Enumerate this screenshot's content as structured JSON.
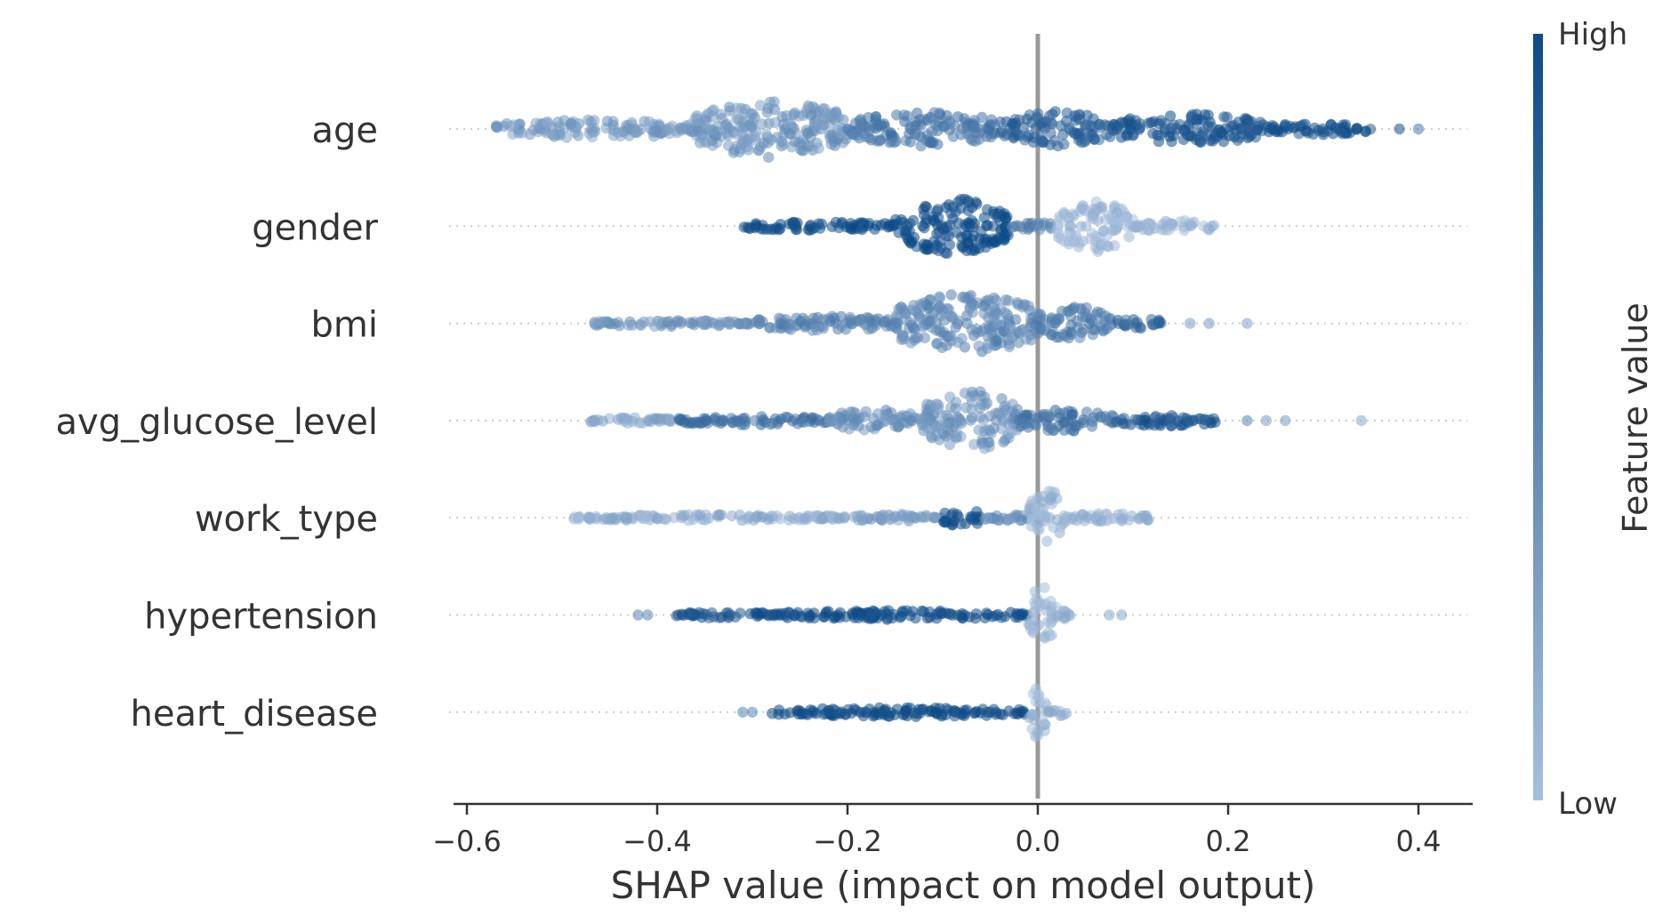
{
  "chart_data": {
    "type": "scatter",
    "subtype": "shap-beeswarm",
    "title": "",
    "xlabel": "SHAP value (impact on model output)",
    "ylabel": "",
    "xlim": [
      -0.62,
      0.45
    ],
    "xticks": [
      -0.6,
      -0.4,
      -0.2,
      0.0,
      0.2,
      0.4
    ],
    "xtick_labels": [
      "−0.6",
      "−0.4",
      "−0.2",
      "0.0",
      "0.2",
      "0.4"
    ],
    "zero_line": 0.0,
    "grid": false,
    "features": [
      {
        "name": "age",
        "segments": [
          {
            "from": -0.57,
            "to": -0.36,
            "spread": 0.25,
            "value": 0.3
          },
          {
            "from": -0.36,
            "to": -0.2,
            "spread": 0.75,
            "value": 0.35
          },
          {
            "from": -0.2,
            "to": -0.04,
            "spread": 0.45,
            "value": 0.6
          },
          {
            "from": -0.04,
            "to": 0.08,
            "spread": 0.45,
            "value": 0.8
          },
          {
            "from": 0.08,
            "to": 0.24,
            "spread": 0.4,
            "value": 0.9
          },
          {
            "from": 0.24,
            "to": 0.35,
            "spread": 0.15,
            "value": 0.95
          }
        ],
        "outliers": [
          {
            "x": 0.38,
            "value": 0.95
          },
          {
            "x": 0.4,
            "value": 0.6
          }
        ]
      },
      {
        "name": "gender",
        "segments": [
          {
            "from": -0.31,
            "to": -0.15,
            "spread": 0.12,
            "value": 1.0
          },
          {
            "from": -0.15,
            "to": -0.03,
            "spread": 0.75,
            "value": 1.0
          },
          {
            "from": -0.03,
            "to": 0.02,
            "spread": 0.1,
            "value": 0.5
          },
          {
            "from": 0.02,
            "to": 0.1,
            "spread": 0.7,
            "value": 0.05
          },
          {
            "from": 0.1,
            "to": 0.19,
            "spread": 0.15,
            "value": 0.05
          }
        ],
        "outliers": []
      },
      {
        "name": "bmi",
        "segments": [
          {
            "from": -0.48,
            "to": -0.3,
            "spread": 0.08,
            "value": 0.35
          },
          {
            "from": -0.3,
            "to": -0.15,
            "spread": 0.2,
            "value": 0.5
          },
          {
            "from": -0.15,
            "to": 0.0,
            "spread": 0.8,
            "value": 0.45
          },
          {
            "from": 0.0,
            "to": 0.08,
            "spread": 0.45,
            "value": 0.55
          },
          {
            "from": 0.08,
            "to": 0.13,
            "spread": 0.15,
            "value": 0.75
          }
        ],
        "outliers": [
          {
            "x": 0.16,
            "value": 0.3
          },
          {
            "x": 0.18,
            "value": 0.3
          },
          {
            "x": 0.22,
            "value": 0.25
          }
        ]
      },
      {
        "name": "avg_glucose_level",
        "segments": [
          {
            "from": -0.47,
            "to": -0.38,
            "spread": 0.08,
            "value": 0.2
          },
          {
            "from": -0.38,
            "to": -0.22,
            "spread": 0.12,
            "value": 0.65
          },
          {
            "from": -0.22,
            "to": -0.12,
            "spread": 0.3,
            "value": 0.4
          },
          {
            "from": -0.12,
            "to": -0.02,
            "spread": 0.8,
            "value": 0.35
          },
          {
            "from": -0.02,
            "to": 0.08,
            "spread": 0.3,
            "value": 0.65
          },
          {
            "from": 0.08,
            "to": 0.19,
            "spread": 0.15,
            "value": 0.85
          }
        ],
        "outliers": [
          {
            "x": 0.22,
            "value": 0.5
          },
          {
            "x": 0.24,
            "value": 0.3
          },
          {
            "x": 0.26,
            "value": 0.3
          },
          {
            "x": 0.34,
            "value": 0.2
          }
        ]
      },
      {
        "name": "work_type",
        "segments": [
          {
            "from": -0.49,
            "to": -0.2,
            "spread": 0.08,
            "value": 0.15
          },
          {
            "from": -0.2,
            "to": -0.1,
            "spread": 0.1,
            "value": 0.3
          },
          {
            "from": -0.1,
            "to": -0.06,
            "spread": 0.25,
            "value": 0.95
          },
          {
            "from": -0.06,
            "to": -0.01,
            "spread": 0.1,
            "value": 0.4
          },
          {
            "from": -0.01,
            "to": 0.03,
            "spread": 0.75,
            "value": 0.1
          },
          {
            "from": 0.03,
            "to": 0.12,
            "spread": 0.12,
            "value": 0.1
          }
        ],
        "outliers": []
      },
      {
        "name": "hypertension",
        "segments": [
          {
            "from": -0.38,
            "to": -0.3,
            "spread": 0.08,
            "value": 0.9
          },
          {
            "from": -0.3,
            "to": -0.01,
            "spread": 0.12,
            "value": 1.0
          },
          {
            "from": -0.01,
            "to": 0.02,
            "spread": 0.75,
            "value": 0.05
          },
          {
            "from": 0.02,
            "to": 0.04,
            "spread": 0.12,
            "value": 0.1
          }
        ],
        "outliers": [
          {
            "x": -0.42,
            "value": 0.5
          },
          {
            "x": -0.41,
            "value": 0.5
          },
          {
            "x": 0.075,
            "value": 0.2
          },
          {
            "x": 0.088,
            "value": 0.2
          }
        ]
      },
      {
        "name": "heart_disease",
        "segments": [
          {
            "from": -0.28,
            "to": -0.01,
            "spread": 0.12,
            "value": 1.0
          },
          {
            "from": -0.01,
            "to": 0.01,
            "spread": 0.7,
            "value": 0.05
          },
          {
            "from": 0.01,
            "to": 0.03,
            "spread": 0.12,
            "value": 0.1
          }
        ],
        "outliers": [
          {
            "x": -0.31,
            "value": 0.5
          },
          {
            "x": -0.3,
            "value": 0.5
          }
        ]
      }
    ],
    "colorbar": {
      "label": "Feature value",
      "high_label": "High",
      "low_label": "Low",
      "high_color": "#0d4a87",
      "low_color": "#a7bfdc"
    },
    "separator_color": "#cccccc",
    "zero_line_color": "#999999",
    "axis_color": "#333333"
  }
}
